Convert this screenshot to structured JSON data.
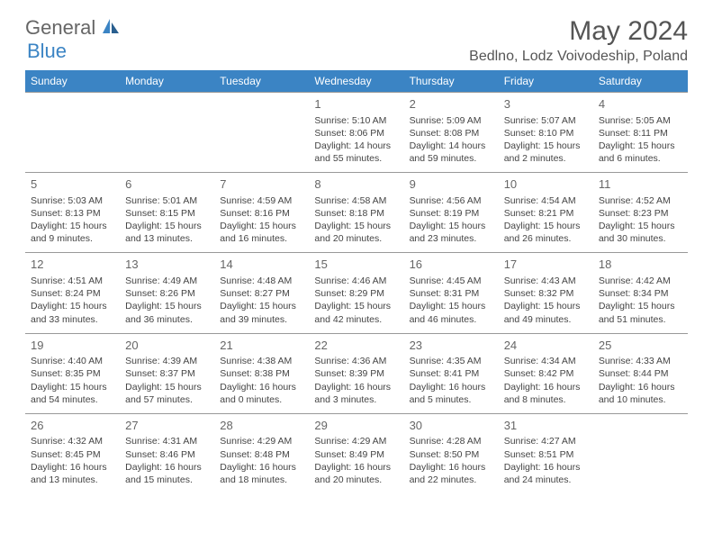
{
  "logo": {
    "text1": "General",
    "text2": "Blue"
  },
  "title": "May 2024",
  "location": "Bedlno, Lodz Voivodeship, Poland",
  "colors": {
    "header_bg": "#3b84c4",
    "header_text": "#ffffff",
    "border": "#999999",
    "text": "#444444",
    "title": "#555555"
  },
  "weekdays": [
    "Sunday",
    "Monday",
    "Tuesday",
    "Wednesday",
    "Thursday",
    "Friday",
    "Saturday"
  ],
  "weeks": [
    [
      null,
      null,
      null,
      {
        "n": "1",
        "sr": "5:10 AM",
        "ss": "8:06 PM",
        "dl": "14 hours and 55 minutes."
      },
      {
        "n": "2",
        "sr": "5:09 AM",
        "ss": "8:08 PM",
        "dl": "14 hours and 59 minutes."
      },
      {
        "n": "3",
        "sr": "5:07 AM",
        "ss": "8:10 PM",
        "dl": "15 hours and 2 minutes."
      },
      {
        "n": "4",
        "sr": "5:05 AM",
        "ss": "8:11 PM",
        "dl": "15 hours and 6 minutes."
      }
    ],
    [
      {
        "n": "5",
        "sr": "5:03 AM",
        "ss": "8:13 PM",
        "dl": "15 hours and 9 minutes."
      },
      {
        "n": "6",
        "sr": "5:01 AM",
        "ss": "8:15 PM",
        "dl": "15 hours and 13 minutes."
      },
      {
        "n": "7",
        "sr": "4:59 AM",
        "ss": "8:16 PM",
        "dl": "15 hours and 16 minutes."
      },
      {
        "n": "8",
        "sr": "4:58 AM",
        "ss": "8:18 PM",
        "dl": "15 hours and 20 minutes."
      },
      {
        "n": "9",
        "sr": "4:56 AM",
        "ss": "8:19 PM",
        "dl": "15 hours and 23 minutes."
      },
      {
        "n": "10",
        "sr": "4:54 AM",
        "ss": "8:21 PM",
        "dl": "15 hours and 26 minutes."
      },
      {
        "n": "11",
        "sr": "4:52 AM",
        "ss": "8:23 PM",
        "dl": "15 hours and 30 minutes."
      }
    ],
    [
      {
        "n": "12",
        "sr": "4:51 AM",
        "ss": "8:24 PM",
        "dl": "15 hours and 33 minutes."
      },
      {
        "n": "13",
        "sr": "4:49 AM",
        "ss": "8:26 PM",
        "dl": "15 hours and 36 minutes."
      },
      {
        "n": "14",
        "sr": "4:48 AM",
        "ss": "8:27 PM",
        "dl": "15 hours and 39 minutes."
      },
      {
        "n": "15",
        "sr": "4:46 AM",
        "ss": "8:29 PM",
        "dl": "15 hours and 42 minutes."
      },
      {
        "n": "16",
        "sr": "4:45 AM",
        "ss": "8:31 PM",
        "dl": "15 hours and 46 minutes."
      },
      {
        "n": "17",
        "sr": "4:43 AM",
        "ss": "8:32 PM",
        "dl": "15 hours and 49 minutes."
      },
      {
        "n": "18",
        "sr": "4:42 AM",
        "ss": "8:34 PM",
        "dl": "15 hours and 51 minutes."
      }
    ],
    [
      {
        "n": "19",
        "sr": "4:40 AM",
        "ss": "8:35 PM",
        "dl": "15 hours and 54 minutes."
      },
      {
        "n": "20",
        "sr": "4:39 AM",
        "ss": "8:37 PM",
        "dl": "15 hours and 57 minutes."
      },
      {
        "n": "21",
        "sr": "4:38 AM",
        "ss": "8:38 PM",
        "dl": "16 hours and 0 minutes."
      },
      {
        "n": "22",
        "sr": "4:36 AM",
        "ss": "8:39 PM",
        "dl": "16 hours and 3 minutes."
      },
      {
        "n": "23",
        "sr": "4:35 AM",
        "ss": "8:41 PM",
        "dl": "16 hours and 5 minutes."
      },
      {
        "n": "24",
        "sr": "4:34 AM",
        "ss": "8:42 PM",
        "dl": "16 hours and 8 minutes."
      },
      {
        "n": "25",
        "sr": "4:33 AM",
        "ss": "8:44 PM",
        "dl": "16 hours and 10 minutes."
      }
    ],
    [
      {
        "n": "26",
        "sr": "4:32 AM",
        "ss": "8:45 PM",
        "dl": "16 hours and 13 minutes."
      },
      {
        "n": "27",
        "sr": "4:31 AM",
        "ss": "8:46 PM",
        "dl": "16 hours and 15 minutes."
      },
      {
        "n": "28",
        "sr": "4:29 AM",
        "ss": "8:48 PM",
        "dl": "16 hours and 18 minutes."
      },
      {
        "n": "29",
        "sr": "4:29 AM",
        "ss": "8:49 PM",
        "dl": "16 hours and 20 minutes."
      },
      {
        "n": "30",
        "sr": "4:28 AM",
        "ss": "8:50 PM",
        "dl": "16 hours and 22 minutes."
      },
      {
        "n": "31",
        "sr": "4:27 AM",
        "ss": "8:51 PM",
        "dl": "16 hours and 24 minutes."
      },
      null
    ]
  ],
  "labels": {
    "sunrise": "Sunrise:",
    "sunset": "Sunset:",
    "daylight": "Daylight:"
  }
}
